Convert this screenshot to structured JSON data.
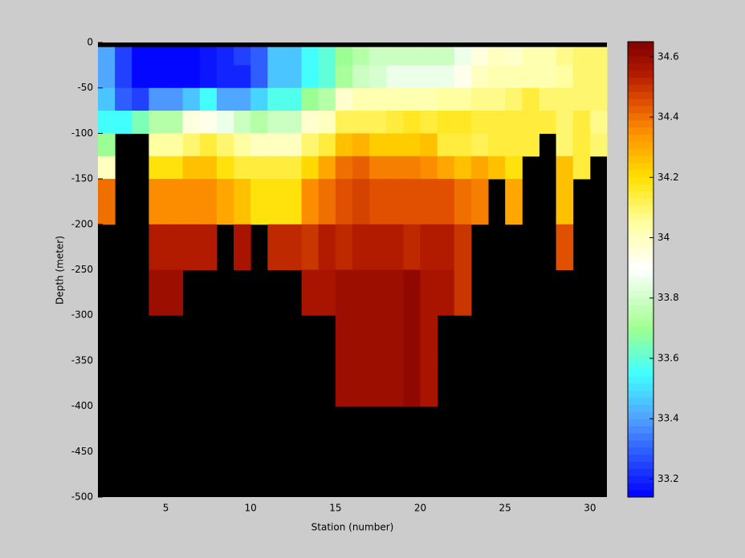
{
  "chart_data": {
    "type": "heatmap",
    "x_label": "Station (number)",
    "y_label": "Depth (meter)",
    "xlim": [
      1,
      31
    ],
    "xticks": [
      5,
      10,
      15,
      20,
      25,
      30
    ],
    "ylim": [
      -500,
      0
    ],
    "yticks": [
      -500,
      -450,
      -400,
      -350,
      -300,
      -250,
      -200,
      -150,
      -100,
      -50,
      0
    ],
    "x_edges": [
      1,
      2,
      3,
      4,
      5,
      6,
      7,
      8,
      9,
      10,
      11,
      12,
      13,
      14,
      15,
      16,
      17,
      18,
      19,
      20,
      21,
      22,
      23,
      24,
      25,
      26,
      27,
      28,
      29,
      30,
      31
    ],
    "y_edges": [
      -5,
      -25,
      -50,
      -75,
      -100,
      -125,
      -150,
      -200,
      -250,
      -300,
      -350,
      -400
    ],
    "values": [
      [
        33.4,
        33.25,
        33.15,
        33.15,
        33.15,
        33.15,
        33.18,
        33.2,
        33.25,
        33.3,
        33.45,
        33.45,
        33.55,
        33.6,
        33.7,
        33.75,
        33.8,
        33.8,
        33.8,
        33.8,
        33.78,
        33.85,
        33.95,
        34.0,
        33.97,
        34.02,
        34.03,
        34.08,
        34.1,
        34.1
      ],
      [
        33.4,
        33.25,
        33.15,
        33.15,
        33.15,
        33.15,
        33.18,
        33.2,
        33.2,
        33.3,
        33.45,
        33.45,
        33.55,
        33.6,
        33.72,
        33.8,
        33.82,
        33.85,
        33.87,
        33.87,
        33.87,
        33.92,
        34.0,
        34.02,
        34.02,
        34.02,
        34.02,
        34.06,
        34.1,
        34.1
      ],
      [
        33.45,
        33.3,
        33.25,
        33.38,
        33.38,
        33.45,
        33.55,
        33.42,
        33.4,
        33.48,
        33.58,
        33.58,
        33.7,
        33.75,
        33.98,
        34.02,
        34.02,
        34.02,
        34.02,
        34.02,
        34.05,
        34.05,
        34.08,
        34.08,
        34.1,
        34.15,
        34.1,
        34.1,
        34.1,
        34.1
      ],
      [
        33.55,
        33.55,
        33.65,
        33.75,
        33.75,
        33.95,
        33.93,
        33.85,
        33.78,
        33.75,
        33.8,
        33.8,
        33.98,
        34.0,
        34.13,
        34.13,
        34.13,
        34.15,
        34.17,
        34.15,
        34.17,
        34.17,
        34.15,
        34.15,
        34.15,
        34.15,
        34.15,
        34.1,
        34.15,
        34.08
      ],
      [
        33.7,
        null,
        null,
        34.05,
        34.05,
        34.1,
        34.15,
        34.1,
        34.05,
        34.0,
        34.0,
        34.0,
        34.1,
        34.15,
        34.25,
        34.28,
        34.23,
        34.23,
        34.23,
        34.25,
        34.15,
        34.15,
        34.12,
        34.15,
        34.15,
        34.15,
        null,
        34.1,
        34.15,
        34.1
      ],
      [
        34.0,
        null,
        null,
        34.2,
        34.2,
        34.25,
        34.25,
        34.2,
        34.15,
        34.15,
        34.15,
        34.15,
        34.22,
        34.3,
        34.4,
        34.42,
        34.38,
        34.38,
        34.38,
        34.35,
        34.3,
        34.25,
        34.3,
        34.25,
        34.2,
        null,
        null,
        34.25,
        34.15,
        null
      ],
      [
        34.4,
        null,
        null,
        34.35,
        34.35,
        34.35,
        34.35,
        34.3,
        34.25,
        34.2,
        34.2,
        34.2,
        34.35,
        34.4,
        34.45,
        34.47,
        34.45,
        34.45,
        34.45,
        34.45,
        34.45,
        34.4,
        34.38,
        null,
        34.3,
        null,
        null,
        34.25,
        null,
        null
      ],
      [
        null,
        null,
        null,
        34.55,
        34.55,
        34.55,
        34.55,
        null,
        34.57,
        null,
        34.53,
        34.53,
        34.5,
        34.55,
        34.52,
        34.55,
        34.55,
        34.55,
        34.52,
        34.55,
        34.55,
        34.5,
        null,
        null,
        null,
        null,
        null,
        34.45,
        null,
        null
      ],
      [
        null,
        null,
        null,
        34.6,
        34.6,
        null,
        null,
        null,
        null,
        null,
        null,
        null,
        34.57,
        34.57,
        34.6,
        34.6,
        34.6,
        34.58,
        34.62,
        34.57,
        34.57,
        34.5,
        null,
        null,
        null,
        null,
        null,
        null,
        null,
        null
      ],
      [
        null,
        null,
        null,
        null,
        null,
        null,
        null,
        null,
        null,
        null,
        null,
        null,
        null,
        null,
        34.6,
        34.6,
        34.6,
        34.58,
        34.62,
        34.57,
        null,
        null,
        null,
        null,
        null,
        null,
        null,
        null,
        null,
        null
      ],
      [
        null,
        null,
        null,
        null,
        null,
        null,
        null,
        null,
        null,
        null,
        null,
        null,
        null,
        null,
        34.6,
        34.6,
        34.6,
        34.58,
        34.62,
        34.57,
        null,
        null,
        null,
        null,
        null,
        null,
        null,
        null,
        null,
        null
      ]
    ],
    "clim": [
      33.14,
      34.65
    ],
    "colorbar_ticks": [
      33.2,
      33.4,
      33.6,
      33.8,
      34,
      34.2,
      34.4,
      34.6
    ],
    "colormap": [
      {
        "value": 33.14,
        "color": "#0000ff"
      },
      {
        "value": 33.4,
        "color": "#50a0ff"
      },
      {
        "value": 33.55,
        "color": "#40ffff"
      },
      {
        "value": 33.7,
        "color": "#a0ff90"
      },
      {
        "value": 33.9,
        "color": "#ffffff"
      },
      {
        "value": 34.05,
        "color": "#ffffa0"
      },
      {
        "value": 34.2,
        "color": "#ffe000"
      },
      {
        "value": 34.35,
        "color": "#ff9000"
      },
      {
        "value": 34.45,
        "color": "#e05000"
      },
      {
        "value": 34.55,
        "color": "#b01800"
      },
      {
        "value": 34.65,
        "color": "#800000"
      }
    ],
    "colormap_levels": 64,
    "background": "#000000"
  }
}
